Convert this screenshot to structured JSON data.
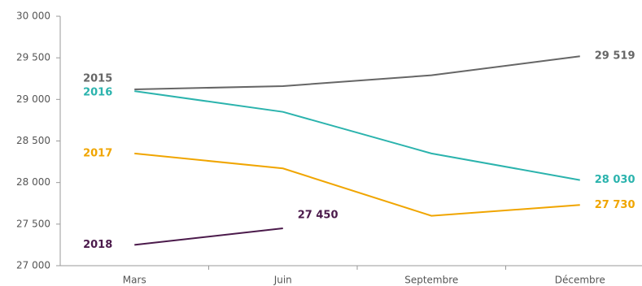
{
  "chart_data": {
    "type": "line",
    "categories": [
      "Mars",
      "Juin",
      "Septembre",
      "Décembre"
    ],
    "series": [
      {
        "name": "2015",
        "color": "#666666",
        "values": [
          29120,
          29160,
          29290,
          29519
        ],
        "value_labels": [
          null,
          null,
          null,
          "29 519"
        ]
      },
      {
        "name": "2016",
        "color": "#2bb3ad",
        "values": [
          29100,
          28850,
          28350,
          28030
        ],
        "value_labels": [
          null,
          null,
          null,
          "28 030"
        ]
      },
      {
        "name": "2017",
        "color": "#f0a500",
        "values": [
          28350,
          28170,
          27600,
          27730
        ],
        "value_labels": [
          null,
          null,
          null,
          "27 730"
        ]
      },
      {
        "name": "2018",
        "color": "#4b1a4b",
        "values": [
          27250,
          27450,
          null,
          null
        ],
        "value_labels": [
          null,
          "27 450",
          null,
          null
        ]
      }
    ],
    "ylim": [
      27000,
      30000
    ],
    "yticks": [
      {
        "value": 27000,
        "label": "27 000"
      },
      {
        "value": 27500,
        "label": "27 500"
      },
      {
        "value": 28000,
        "label": "28 000"
      },
      {
        "value": 28500,
        "label": "28 500"
      },
      {
        "value": 29000,
        "label": "29 000"
      },
      {
        "value": 29500,
        "label": "29 500"
      },
      {
        "value": 30000,
        "label": "30 000"
      }
    ]
  }
}
